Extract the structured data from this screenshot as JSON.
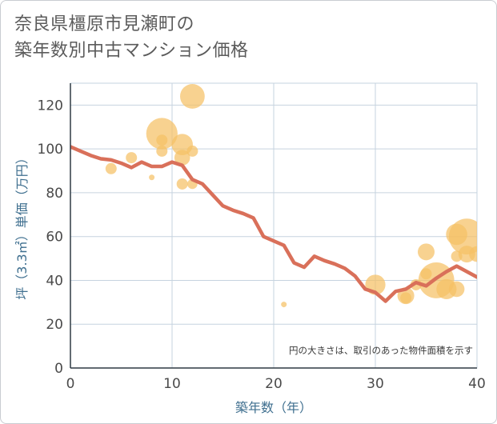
{
  "title": {
    "line1": "奈良県橿原市見瀬町の",
    "line2": "築年数別中古マンション価格"
  },
  "colors": {
    "bubble": "#f5c165",
    "trend": "#d9705a",
    "grid": "#c6d3df",
    "axis_label": "#3f6f8f"
  },
  "chart_data": {
    "type": "scatter",
    "title": "奈良県橿原市見瀬町の築年数別中古マンション価格",
    "xlabel": "築年数（年）",
    "ylabel": "坪（3.3㎡）単価（万円）",
    "xlim": [
      0,
      40
    ],
    "ylim": [
      0,
      130
    ],
    "xticks": [
      0,
      10,
      20,
      30,
      40
    ],
    "yticks": [
      0,
      20,
      40,
      60,
      80,
      100,
      120
    ],
    "grid": true,
    "note": "円の大きさは、取引のあった物件面積を示す",
    "series": [
      {
        "kind": "bubble",
        "points": [
          {
            "x": 4,
            "y": 91,
            "size": 1.0
          },
          {
            "x": 6,
            "y": 96,
            "size": 1.0
          },
          {
            "x": 8,
            "y": 87,
            "size": 0.5
          },
          {
            "x": 9,
            "y": 107,
            "size": 2.8
          },
          {
            "x": 9,
            "y": 104,
            "size": 1.0
          },
          {
            "x": 9,
            "y": 99,
            "size": 1.0
          },
          {
            "x": 11,
            "y": 102,
            "size": 1.9
          },
          {
            "x": 11,
            "y": 96,
            "size": 1.4
          },
          {
            "x": 11,
            "y": 84,
            "size": 1.0
          },
          {
            "x": 12,
            "y": 124,
            "size": 2.2
          },
          {
            "x": 12,
            "y": 99,
            "size": 1.0
          },
          {
            "x": 12,
            "y": 84,
            "size": 0.9
          },
          {
            "x": 21,
            "y": 29,
            "size": 0.5
          },
          {
            "x": 30,
            "y": 38,
            "size": 1.8
          },
          {
            "x": 33,
            "y": 33,
            "size": 1.5
          },
          {
            "x": 33,
            "y": 32,
            "size": 1.0
          },
          {
            "x": 34,
            "y": 38,
            "size": 1.0
          },
          {
            "x": 35,
            "y": 53,
            "size": 1.5
          },
          {
            "x": 35,
            "y": 43,
            "size": 1.0
          },
          {
            "x": 36,
            "y": 40,
            "size": 3.2
          },
          {
            "x": 37,
            "y": 36,
            "size": 1.8
          },
          {
            "x": 38,
            "y": 61,
            "size": 1.9
          },
          {
            "x": 38,
            "y": 51,
            "size": 1.0
          },
          {
            "x": 38,
            "y": 36,
            "size": 1.4
          },
          {
            "x": 39,
            "y": 60,
            "size": 3.2
          },
          {
            "x": 39,
            "y": 52,
            "size": 1.5
          },
          {
            "x": 40,
            "y": 52,
            "size": 1.4
          }
        ]
      },
      {
        "kind": "line",
        "x": [
          0,
          1,
          2,
          3,
          4,
          5,
          6,
          7,
          8,
          9,
          10,
          11,
          12,
          13,
          14,
          15,
          16,
          17,
          18,
          19,
          20,
          21,
          22,
          23,
          24,
          25,
          26,
          27,
          28,
          29,
          30,
          31,
          32,
          33,
          34,
          35,
          36,
          37,
          38,
          39,
          40
        ],
        "y": [
          101,
          99,
          97,
          95.5,
          95,
          93.5,
          91.5,
          94,
          92,
          92,
          94,
          92.5,
          86,
          84,
          79,
          74,
          72,
          70.5,
          68.5,
          60,
          58,
          56,
          48,
          46,
          51,
          49,
          47.5,
          45.5,
          42,
          36,
          34.5,
          30.5,
          35,
          36,
          39,
          37.5,
          41,
          44,
          46.5,
          44,
          41.5
        ]
      }
    ]
  }
}
